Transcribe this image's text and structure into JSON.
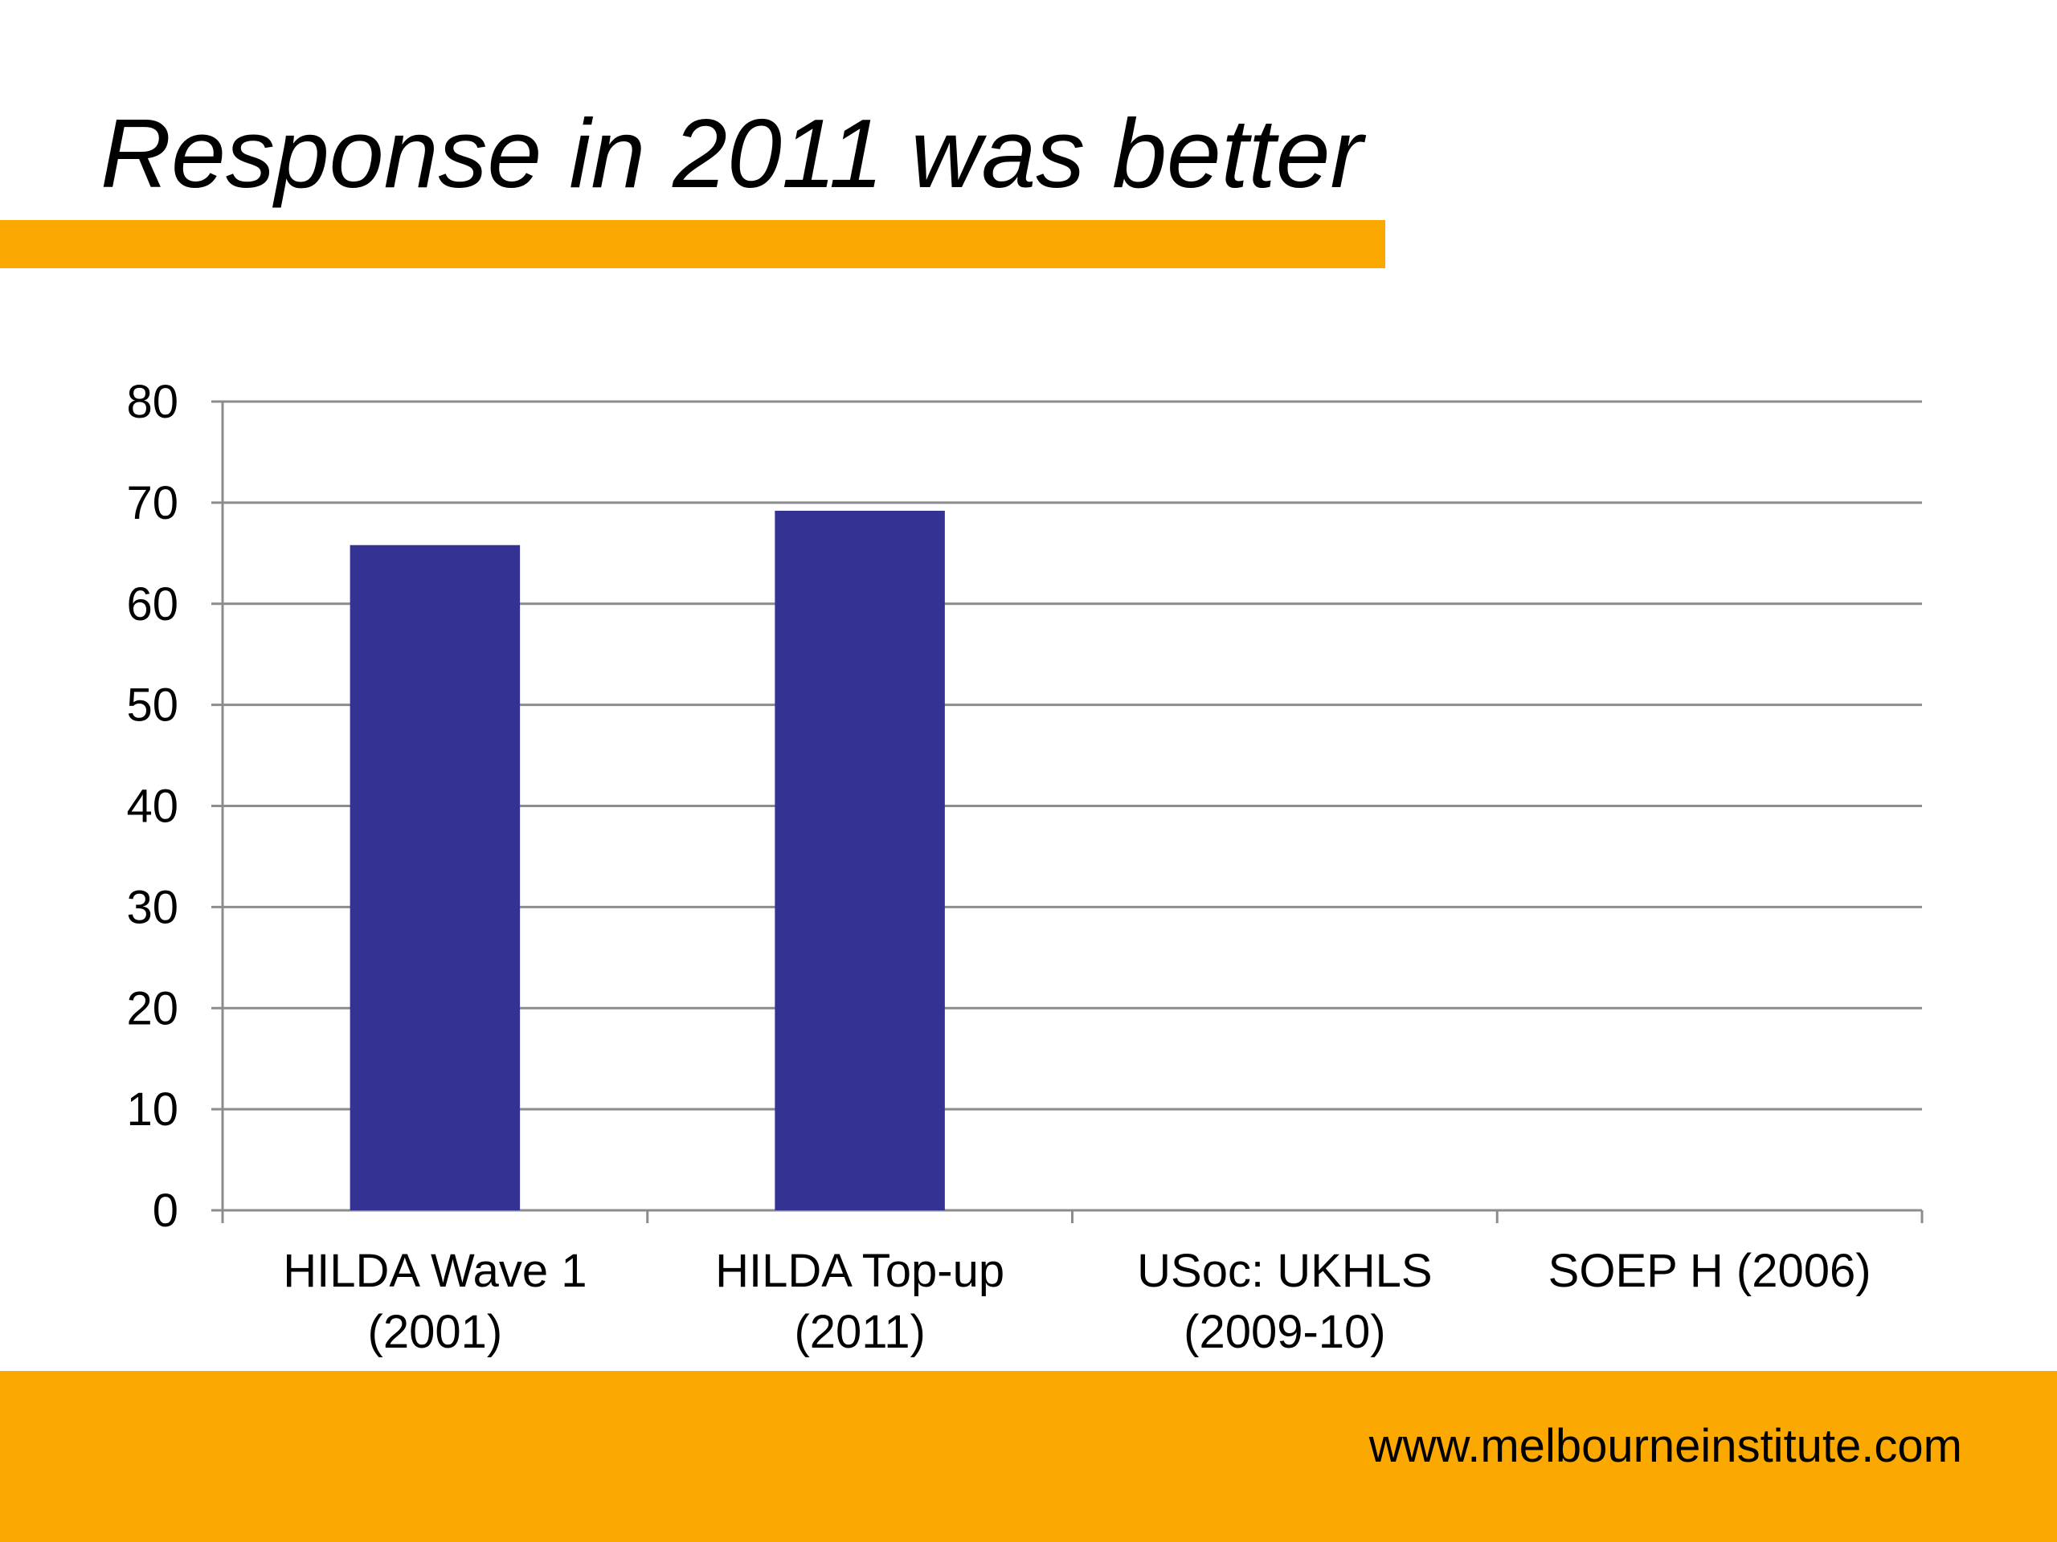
{
  "slide": {
    "title": "Response in 2011 was better",
    "footer_url": "www.melbourneinstitute.com"
  },
  "colors": {
    "accent": "#FBA900",
    "bar": "#343394",
    "grid": "#8C8C8C"
  },
  "chart_data": {
    "type": "bar",
    "title": "",
    "xlabel": "",
    "ylabel": "",
    "ylim": [
      0,
      80
    ],
    "yticks": [
      0,
      10,
      20,
      30,
      40,
      50,
      60,
      70,
      80
    ],
    "categories": [
      [
        "HILDA Wave 1",
        "(2001)"
      ],
      [
        "HILDA Top-up",
        "(2011)"
      ],
      [
        "USoc: UKHLS",
        "(2009-10)"
      ],
      [
        "SOEP H (2006)"
      ]
    ],
    "values": [
      65.8,
      69.2,
      null,
      null
    ],
    "grid": true
  }
}
